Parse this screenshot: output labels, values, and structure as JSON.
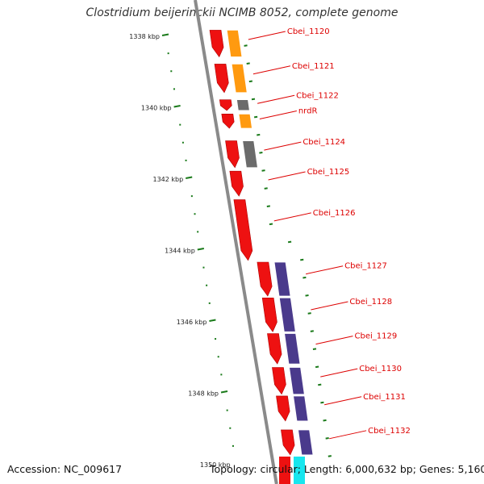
{
  "title": "Clostridium beijerinckii NCIMB 8052, complete genome",
  "footer": {
    "accession": "Accession: NC_009617",
    "topology": "Topology: circular; Length: 6,000,632 bp; Genes: 5,160"
  },
  "colors": {
    "backbone": "#8a8a8a",
    "cds": "#ee1111",
    "orange": "#ff9a10",
    "gray": "#6b6b6b",
    "purple": "#4a3a8c",
    "cyan": "#18e6ee",
    "tick": "#1a7a1a",
    "leader": "#dd0000"
  },
  "ruler": {
    "unit": "kbp",
    "labeled_ticks": [
      {
        "label": "1338 kbp",
        "kbp": 1338
      },
      {
        "label": "1340 kbp",
        "kbp": 1340
      },
      {
        "label": "1342 kbp",
        "kbp": 1342
      },
      {
        "label": "1344 kbp",
        "kbp": 1344
      },
      {
        "label": "1346 kbp",
        "kbp": 1346
      },
      {
        "label": "1348 kbp",
        "kbp": 1348
      },
      {
        "label": "1350 kbp",
        "kbp": 1350
      }
    ]
  },
  "genes": [
    {
      "name": "Cbei_1120",
      "start_kbp": 1337.85,
      "end_kbp": 1338.6
    },
    {
      "name": "Cbei_1121",
      "start_kbp": 1338.8,
      "end_kbp": 1339.6
    },
    {
      "name": "Cbei_1122",
      "start_kbp": 1339.8,
      "end_kbp": 1340.1
    },
    {
      "name": "nrdR",
      "start_kbp": 1340.2,
      "end_kbp": 1340.6
    },
    {
      "name": "Cbei_1124",
      "start_kbp": 1340.95,
      "end_kbp": 1341.7
    },
    {
      "name": "Cbei_1125",
      "start_kbp": 1341.8,
      "end_kbp": 1342.5
    },
    {
      "name": "Cbei_1126",
      "start_kbp": 1342.6,
      "end_kbp": 1344.3
    },
    {
      "name": "Cbei_1127",
      "start_kbp": 1344.35,
      "end_kbp": 1345.3
    },
    {
      "name": "Cbei_1128",
      "start_kbp": 1345.35,
      "end_kbp": 1346.3
    },
    {
      "name": "Cbei_1129",
      "start_kbp": 1346.35,
      "end_kbp": 1347.2
    },
    {
      "name": "Cbei_1130",
      "start_kbp": 1347.3,
      "end_kbp": 1348.05
    },
    {
      "name": "Cbei_1131",
      "start_kbp": 1348.1,
      "end_kbp": 1348.8
    },
    {
      "name": "Cbei_1132",
      "start_kbp": 1349.05,
      "end_kbp": 1349.75
    }
  ]
}
